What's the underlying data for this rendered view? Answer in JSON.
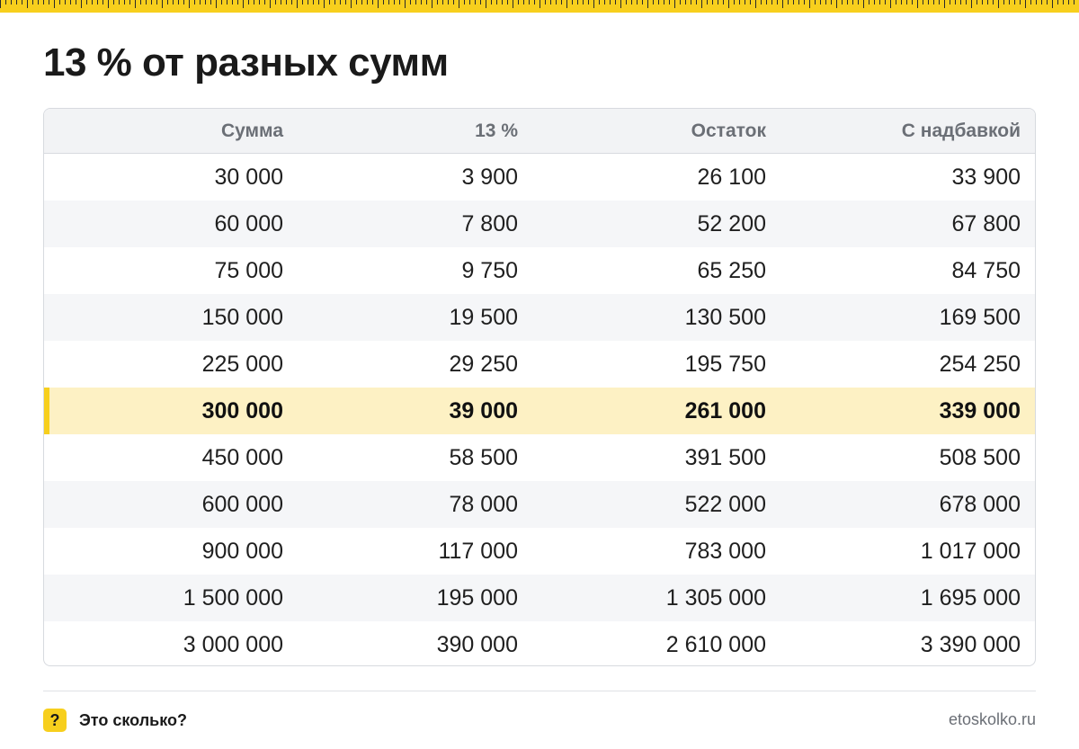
{
  "title": "13 % от разных сумм",
  "table": {
    "headers": [
      "Сумма",
      "13 %",
      "Остаток",
      "С надбавкой"
    ],
    "highlighted_row_index": 5,
    "rows": [
      [
        "30 000",
        "3 900",
        "26 100",
        "33 900"
      ],
      [
        "60 000",
        "7 800",
        "52 200",
        "67 800"
      ],
      [
        "75 000",
        "9 750",
        "65 250",
        "84 750"
      ],
      [
        "150 000",
        "19 500",
        "130 500",
        "169 500"
      ],
      [
        "225 000",
        "29 250",
        "195 750",
        "254 250"
      ],
      [
        "300 000",
        "39 000",
        "261 000",
        "339 000"
      ],
      [
        "450 000",
        "58 500",
        "391 500",
        "508 500"
      ],
      [
        "600 000",
        "78 000",
        "522 000",
        "678 000"
      ],
      [
        "900 000",
        "117 000",
        "783 000",
        "1 017 000"
      ],
      [
        "1 500 000",
        "195 000",
        "1 305 000",
        "1 695 000"
      ],
      [
        "3 000 000",
        "390 000",
        "2 610 000",
        "3 390 000"
      ]
    ]
  },
  "footer": {
    "logo_symbol": "?",
    "brand": "Это сколько?",
    "site": "etoskolko.ru"
  },
  "colors": {
    "accent": "#f7cf1d",
    "highlight_row": "#fdf1c4",
    "stripe_row": "#f5f6f8"
  }
}
